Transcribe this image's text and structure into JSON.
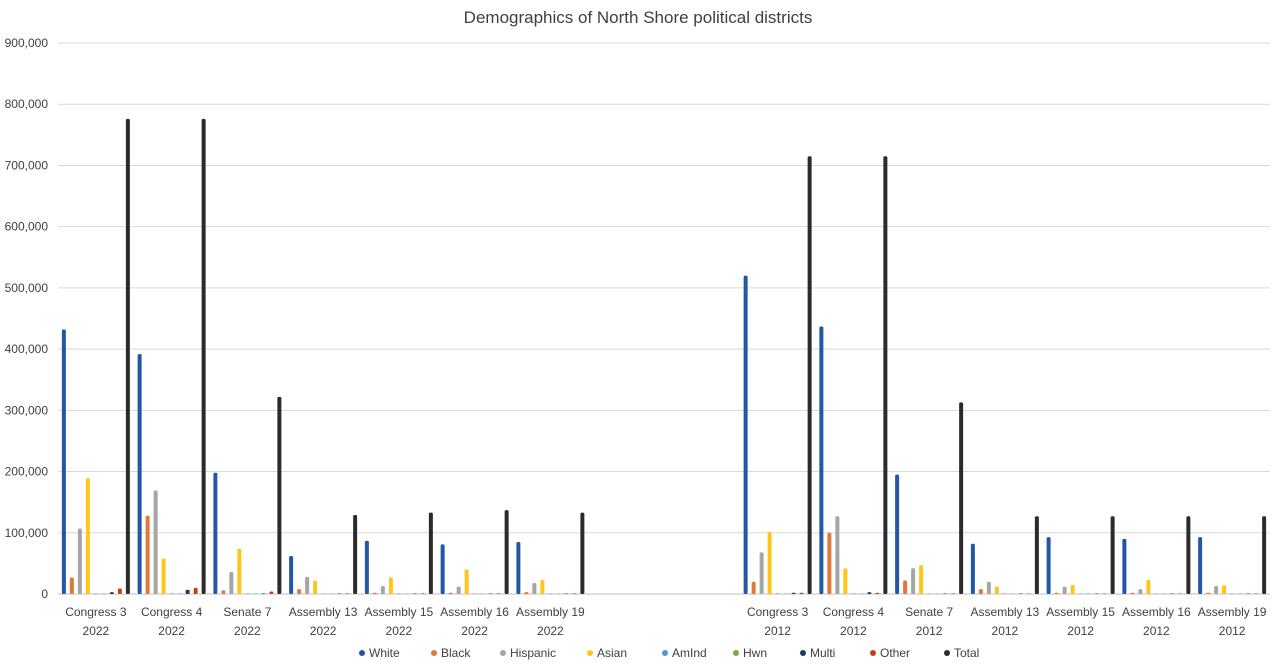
{
  "chart_data": {
    "type": "bar",
    "title": "Demographics of North Shore political districts",
    "xlabel": "",
    "ylabel": "",
    "ylim": [
      0,
      900000
    ],
    "yticks": [
      0,
      100000,
      200000,
      300000,
      400000,
      500000,
      600000,
      700000,
      800000,
      900000
    ],
    "ytick_labels": [
      "0",
      "100,000",
      "200,000",
      "300,000",
      "400,000",
      "500,000",
      "600,000",
      "700,000",
      "800,000",
      "900,000"
    ],
    "grid": true,
    "legend_position": "bottom",
    "categories": [
      {
        "line1": "Congress 3",
        "line2": "2022"
      },
      {
        "line1": "Congress 4",
        "line2": "2022"
      },
      {
        "line1": "Senate 7",
        "line2": "2022"
      },
      {
        "line1": "Assembly 13",
        "line2": "2022"
      },
      {
        "line1": "Assembly 15",
        "line2": "2022"
      },
      {
        "line1": "Assembly 16",
        "line2": "2022"
      },
      {
        "line1": "Assembly 19",
        "line2": "2022"
      },
      {
        "line1": "",
        "line2": ""
      },
      {
        "line1": "",
        "line2": ""
      },
      {
        "line1": "Congress 3",
        "line2": "2012"
      },
      {
        "line1": "Congress 4",
        "line2": "2012"
      },
      {
        "line1": "Senate 7",
        "line2": "2012"
      },
      {
        "line1": "Assembly 13",
        "line2": "2012"
      },
      {
        "line1": "Assembly 15",
        "line2": "2012"
      },
      {
        "line1": "Assembly 16",
        "line2": "2012"
      },
      {
        "line1": "Assembly 19",
        "line2": "2012"
      }
    ],
    "series": [
      {
        "name": "White",
        "color": "#2456a6",
        "values": [
          432000,
          392000,
          198000,
          62000,
          87000,
          81000,
          85000,
          null,
          null,
          520000,
          437000,
          195000,
          82000,
          93000,
          90000,
          93000
        ]
      },
      {
        "name": "Black",
        "color": "#e2773b",
        "values": [
          27000,
          128000,
          6000,
          8000,
          2000,
          2000,
          3000,
          null,
          null,
          20000,
          100000,
          22000,
          8000,
          2000,
          2000,
          2000
        ]
      },
      {
        "name": "Hispanic",
        "color": "#a5a5a5",
        "values": [
          107000,
          169000,
          36000,
          28000,
          13000,
          12000,
          18000,
          null,
          null,
          68000,
          127000,
          42000,
          20000,
          12000,
          8000,
          13000
        ]
      },
      {
        "name": "Asian",
        "color": "#ffc519",
        "values": [
          189000,
          58000,
          74000,
          22000,
          27000,
          40000,
          23000,
          null,
          null,
          101000,
          42000,
          47000,
          12000,
          15000,
          23000,
          14000
        ]
      },
      {
        "name": "AmInd",
        "color": "#4a9bd6",
        "values": [
          1000,
          1000,
          500,
          300,
          300,
          300,
          300,
          null,
          null,
          1000,
          1000,
          500,
          300,
          300,
          300,
          300
        ]
      },
      {
        "name": "Hwn",
        "color": "#6fad47",
        "values": [
          200,
          200,
          100,
          100,
          100,
          100,
          100,
          null,
          null,
          200,
          200,
          100,
          100,
          100,
          100,
          100
        ]
      },
      {
        "name": "Multi",
        "color": "#1f3a6b",
        "values": [
          3000,
          7000,
          1000,
          500,
          500,
          500,
          500,
          null,
          null,
          2000,
          3000,
          800,
          500,
          500,
          500,
          500
        ]
      },
      {
        "name": "Other",
        "color": "#c1440e",
        "values": [
          9000,
          10000,
          4000,
          1000,
          1000,
          1000,
          1000,
          null,
          null,
          2000,
          2000,
          1000,
          500,
          500,
          500,
          500
        ]
      },
      {
        "name": "Total",
        "color": "#2b2b2b",
        "values": [
          776000,
          776000,
          322000,
          129000,
          133000,
          137000,
          133000,
          null,
          null,
          715000,
          715000,
          313000,
          127000,
          127000,
          127000,
          127000
        ]
      }
    ]
  }
}
